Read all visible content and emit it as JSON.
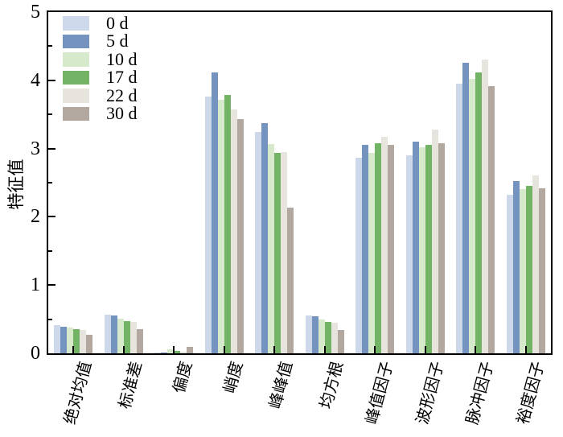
{
  "figure": {
    "ylabel": "特征值",
    "y_tick_labels": [
      "0",
      "1",
      "2",
      "3",
      "4",
      "5"
    ]
  },
  "legend": {
    "labels": [
      "0 d",
      "5 d",
      "10 d",
      "17 d",
      "22 d",
      "30 d"
    ]
  },
  "chart_data": {
    "type": "bar",
    "title": "",
    "xlabel": "",
    "ylabel": "特征值",
    "ylim": [
      0,
      5
    ],
    "y_major_step": 1,
    "y_minor_step": 0.5,
    "grid": false,
    "legend_position": "upper-left-inside",
    "categories": [
      "绝对均值",
      "标准差",
      "偏度",
      "峭度",
      "峰峰值",
      "均方根",
      "峰值因子",
      "波形因子",
      "脉冲因子",
      "裕度因子"
    ],
    "series": [
      {
        "name": "0 d",
        "color": "#cdd9ea",
        "values": [
          0.41,
          0.57,
          0.01,
          3.76,
          3.24,
          0.56,
          2.87,
          2.9,
          3.95,
          2.32
        ]
      },
      {
        "name": "5 d",
        "color": "#7493bf",
        "values": [
          0.39,
          0.55,
          0.01,
          4.12,
          3.37,
          0.54,
          3.06,
          3.1,
          4.26,
          2.52
        ]
      },
      {
        "name": "10 d",
        "color": "#d6e9ca",
        "values": [
          0.38,
          0.51,
          0.06,
          3.72,
          3.07,
          0.5,
          2.94,
          3.02,
          4.02,
          2.4
        ]
      },
      {
        "name": "17 d",
        "color": "#72b366",
        "values": [
          0.35,
          0.47,
          0.04,
          3.78,
          2.94,
          0.46,
          3.08,
          3.05,
          4.12,
          2.45
        ]
      },
      {
        "name": "22 d",
        "color": "#e7e3dd",
        "values": [
          0.34,
          0.46,
          0.02,
          3.57,
          2.95,
          0.45,
          3.17,
          3.28,
          4.31,
          2.61
        ]
      },
      {
        "name": "30 d",
        "color": "#b3a8a0",
        "values": [
          0.27,
          0.35,
          0.09,
          3.43,
          2.13,
          0.34,
          3.06,
          3.08,
          3.91,
          2.42
        ]
      }
    ],
    "axis_color": "#000000",
    "background_color": "#ffffff"
  }
}
